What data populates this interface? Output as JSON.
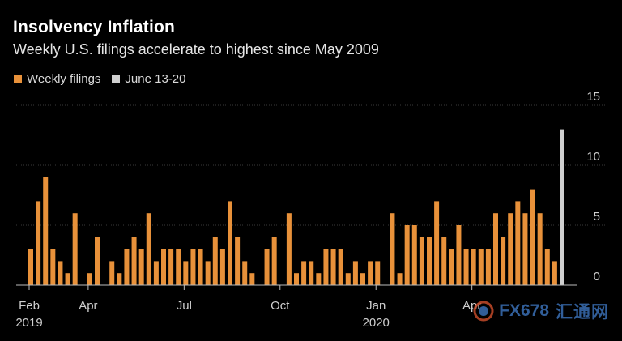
{
  "chart_data": {
    "type": "bar",
    "title": "Insolvency Inflation",
    "subtitle": "Weekly U.S. filings accelerate to highest since May 2009",
    "xlabel": "",
    "ylabel": "",
    "ylim": [
      0,
      15
    ],
    "yticks": [
      0,
      5,
      10,
      15
    ],
    "yaxis_side": "right",
    "grid": true,
    "legend": {
      "placement": "top-left",
      "entries": [
        {
          "label": "Weekly filings",
          "color": "#e8913a"
        },
        {
          "label": "June 13-20",
          "color": "#d0d0d0"
        }
      ]
    },
    "x_ticks": [
      {
        "label": "Feb",
        "sublabel": "2019",
        "index": 0
      },
      {
        "label": "Apr",
        "sublabel": "",
        "index": 8
      },
      {
        "label": "Jul",
        "sublabel": "",
        "index": 21
      },
      {
        "label": "Oct",
        "sublabel": "",
        "index": 34
      },
      {
        "label": "Jan",
        "sublabel": "2020",
        "index": 47
      },
      {
        "label": "Apr",
        "sublabel": "",
        "index": 60
      }
    ],
    "series": [
      {
        "name": "Weekly filings",
        "color": "#e8913a",
        "values": [
          3,
          7,
          9,
          3,
          2,
          1,
          6,
          0,
          1,
          4,
          0,
          2,
          1,
          3,
          4,
          3,
          6,
          2,
          3,
          3,
          3,
          2,
          3,
          3,
          2,
          4,
          3,
          7,
          4,
          2,
          1,
          0,
          3,
          4,
          0,
          6,
          1,
          2,
          2,
          1,
          3,
          3,
          3,
          1,
          2,
          1,
          2,
          2,
          0,
          6,
          1,
          5,
          5,
          4,
          4,
          7,
          4,
          3,
          5,
          3,
          3,
          3,
          3,
          6,
          4,
          6,
          7,
          6,
          8,
          6,
          3,
          2,
          0
        ]
      },
      {
        "name": "June 13-20",
        "color": "#d0d0d0",
        "values": [
          0,
          0,
          0,
          0,
          0,
          0,
          0,
          0,
          0,
          0,
          0,
          0,
          0,
          0,
          0,
          0,
          0,
          0,
          0,
          0,
          0,
          0,
          0,
          0,
          0,
          0,
          0,
          0,
          0,
          0,
          0,
          0,
          0,
          0,
          0,
          0,
          0,
          0,
          0,
          0,
          0,
          0,
          0,
          0,
          0,
          0,
          0,
          0,
          0,
          0,
          0,
          0,
          0,
          0,
          0,
          0,
          0,
          0,
          0,
          0,
          0,
          0,
          0,
          0,
          0,
          0,
          0,
          0,
          0,
          0,
          0,
          0,
          13
        ]
      }
    ]
  },
  "watermark": {
    "latin": "FX678",
    "chinese": "汇通网",
    "color": "#3a6fb4"
  }
}
